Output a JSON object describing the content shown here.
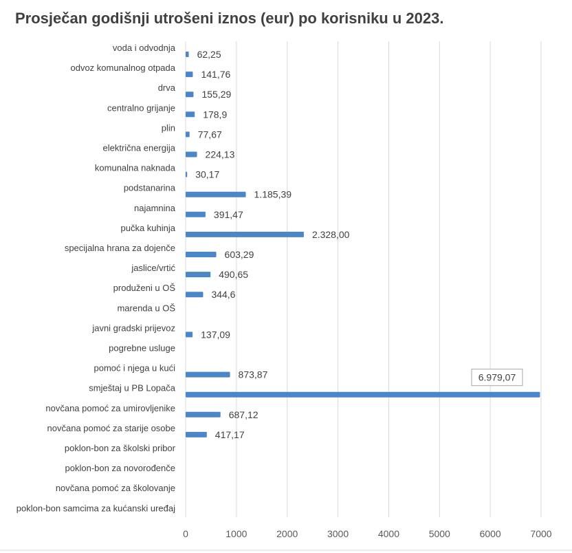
{
  "chart_data": {
    "type": "bar",
    "orientation": "horizontal",
    "title": "Prosječan godišnji utrošeni iznos (eur) po korisniku u 2023.",
    "xlabel": "",
    "ylabel": "",
    "xlim": [
      0,
      7000
    ],
    "x_ticks": [
      "0",
      "1000",
      "2000",
      "3000",
      "4000",
      "5000",
      "6000",
      "7000"
    ],
    "grid": true,
    "legend": "none",
    "bar_color": "#4a86c8",
    "categories": [
      "voda i odvodnja",
      "odvoz komunalnog otpada",
      "drva",
      "centralno grijanje",
      "plin",
      "električna energija",
      "komunalna naknada",
      "podstanarina",
      "najamnina",
      "pučka kuhinja",
      "specijalna hrana za dojenče",
      "jaslice/vrtić",
      "produženi u OŠ",
      "marenda u OŠ",
      "javni gradski prijevoz",
      "pogrebne usluge",
      "pomoć i njega u kući",
      "smještaj u PB Lopača",
      "novčana pomoć za umirovljenike",
      "novčana pomoć za starije osobe",
      "poklon-bon za školski pribor",
      "poklon-bon za novorođenče",
      "novčana pomoć za školovanje",
      "poklon-bon samcima za kućanski uređaj"
    ],
    "values": [
      62.25,
      141.76,
      155.29,
      178.9,
      77.67,
      224.13,
      30.17,
      1185.39,
      391.47,
      2328.0,
      603.29,
      490.65,
      344.6,
      null,
      137.09,
      null,
      873.87,
      6979.07,
      687.12,
      417.17,
      null,
      null,
      null,
      null
    ],
    "data_labels": [
      "62,25",
      "141,76",
      "155,29",
      "178,9",
      "77,67",
      "224,13",
      "30,17",
      "1.185,39",
      "391,47",
      "2.328,00",
      "603,29",
      "490,65",
      "344,6",
      "",
      "137,09",
      "",
      "873,87",
      "6.979,07",
      "687,12",
      "417,17",
      "",
      "",
      "",
      ""
    ],
    "boxed_label_index": 17
  }
}
